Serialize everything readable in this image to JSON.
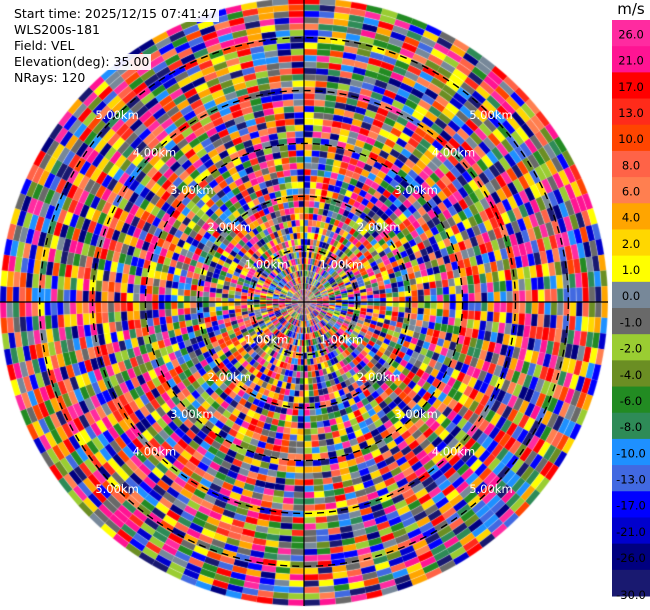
{
  "header": {
    "start_time": "Start time: 2025/12/15 07:41:47",
    "instrument": "WLS200s-181",
    "field": "Field: VEL",
    "elevation": "Elevation(deg): 35.00",
    "nrays": "NRays: 120"
  },
  "chart_data": {
    "type": "heatmap",
    "projection": "polar-ppi",
    "field": "VEL",
    "units": "m/s",
    "n_rays": 120,
    "elevation_deg": 35.0,
    "range_ring_labels": [
      "1.00km",
      "2.00km",
      "3.00km",
      "4.00km",
      "5.00km"
    ],
    "rings": [
      1,
      2,
      3,
      4,
      5
    ],
    "max_range": 5.75,
    "n_gates": 48,
    "colorbar": {
      "title": "m/s",
      "tick_labels": [
        "26.0",
        "21.0",
        "17.0",
        "13.0",
        "10.0",
        "8.0",
        "6.0",
        "4.0",
        "2.0",
        "1.0",
        "0.0",
        "-1.0",
        "-2.0",
        "-4.0",
        "-6.0",
        "-8.0",
        "-10.0",
        "-13.0",
        "-17.0",
        "-21.0",
        "-26.0",
        "-30.0"
      ],
      "bins": [
        {
          "from": 26,
          "to": 30,
          "color": "#ff2ba0"
        },
        {
          "from": 21,
          "to": 26,
          "color": "#ff1493"
        },
        {
          "from": 17,
          "to": 21,
          "color": "#ff0000"
        },
        {
          "from": 13,
          "to": 17,
          "color": "#ff2b1a"
        },
        {
          "from": 10,
          "to": 13,
          "color": "#ff4500"
        },
        {
          "from": 8,
          "to": 10,
          "color": "#ff6347"
        },
        {
          "from": 6,
          "to": 8,
          "color": "#ff7f50"
        },
        {
          "from": 4,
          "to": 6,
          "color": "#ffa500"
        },
        {
          "from": 2,
          "to": 4,
          "color": "#ffd700"
        },
        {
          "from": 1,
          "to": 2,
          "color": "#ffff00"
        },
        {
          "from": 0,
          "to": 1,
          "color": "#778899"
        },
        {
          "from": -1,
          "to": 0,
          "color": "#696969"
        },
        {
          "from": -2,
          "to": -1,
          "color": "#9acd32"
        },
        {
          "from": -4,
          "to": -2,
          "color": "#6b8e23"
        },
        {
          "from": -6,
          "to": -4,
          "color": "#228b22"
        },
        {
          "from": -8,
          "to": -6,
          "color": "#2e8b57"
        },
        {
          "from": -10,
          "to": -8,
          "color": "#1e90ff"
        },
        {
          "from": -13,
          "to": -10,
          "color": "#4169e1"
        },
        {
          "from": -17,
          "to": -13,
          "color": "#0000ff"
        },
        {
          "from": -21,
          "to": -17,
          "color": "#0000cd"
        },
        {
          "from": -26,
          "to": -21,
          "color": "#000080"
        },
        {
          "from": -30,
          "to": -26,
          "color": "#191970"
        }
      ]
    }
  }
}
